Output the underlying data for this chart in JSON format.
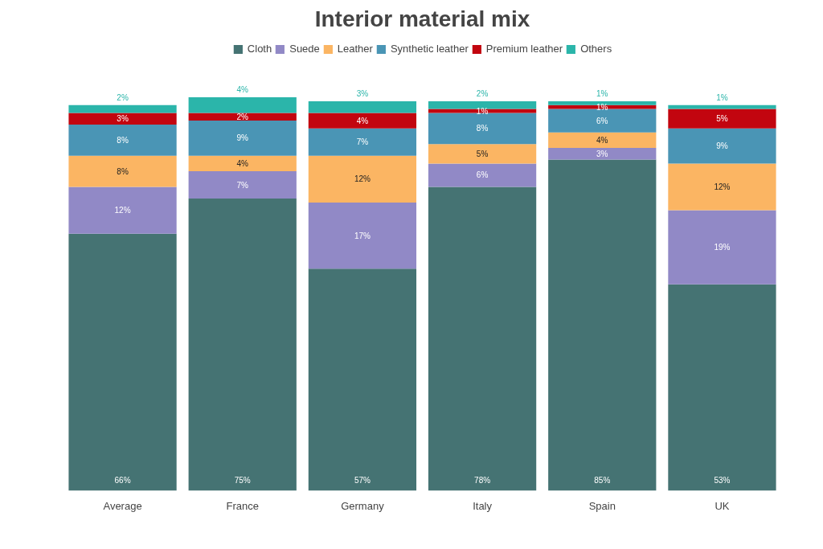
{
  "chart_data": {
    "type": "bar",
    "title": "Interior material mix",
    "stacked": true,
    "legend": "top",
    "grid": false,
    "categories": [
      "Average",
      "France",
      "Germany",
      "Italy",
      "Spain",
      "UK"
    ],
    "series": [
      {
        "name": "Cloth",
        "color": "#457373",
        "values": [
          66,
          75,
          57,
          78,
          85,
          53
        ],
        "value_labels": [
          "66%",
          "75%",
          "57%",
          "78%",
          "85%",
          "53%"
        ]
      },
      {
        "name": "Suede",
        "color": "#9189c6",
        "values": [
          12,
          7,
          17,
          6,
          3,
          19
        ],
        "value_labels": [
          "12%",
          "7%",
          "17%",
          "6%",
          "3%",
          "19%"
        ]
      },
      {
        "name": "Leather",
        "color": "#fbb563",
        "values": [
          8,
          4,
          12,
          5,
          4,
          12
        ],
        "value_labels": [
          "8%",
          "4%",
          "12%",
          "5%",
          "4%",
          "12%"
        ]
      },
      {
        "name": "Synthetic leather",
        "color": "#4a95b5",
        "values": [
          8,
          9,
          7,
          8,
          6,
          9
        ],
        "value_labels": [
          "8%",
          "9%",
          "7%",
          "8%",
          "6%",
          "9%"
        ]
      },
      {
        "name": "Premium leather",
        "color": "#c2050f",
        "values": [
          3,
          2,
          4,
          1,
          1,
          5
        ],
        "value_labels": [
          "3%",
          "2%",
          "4%",
          "1%",
          "1%",
          "5%"
        ]
      },
      {
        "name": "Others",
        "color": "#2bb5aa",
        "values": [
          2,
          4,
          3,
          2,
          1,
          1
        ],
        "value_labels": [
          "2%",
          "4%",
          "3%",
          "2%",
          "1%",
          "1%"
        ]
      }
    ]
  }
}
